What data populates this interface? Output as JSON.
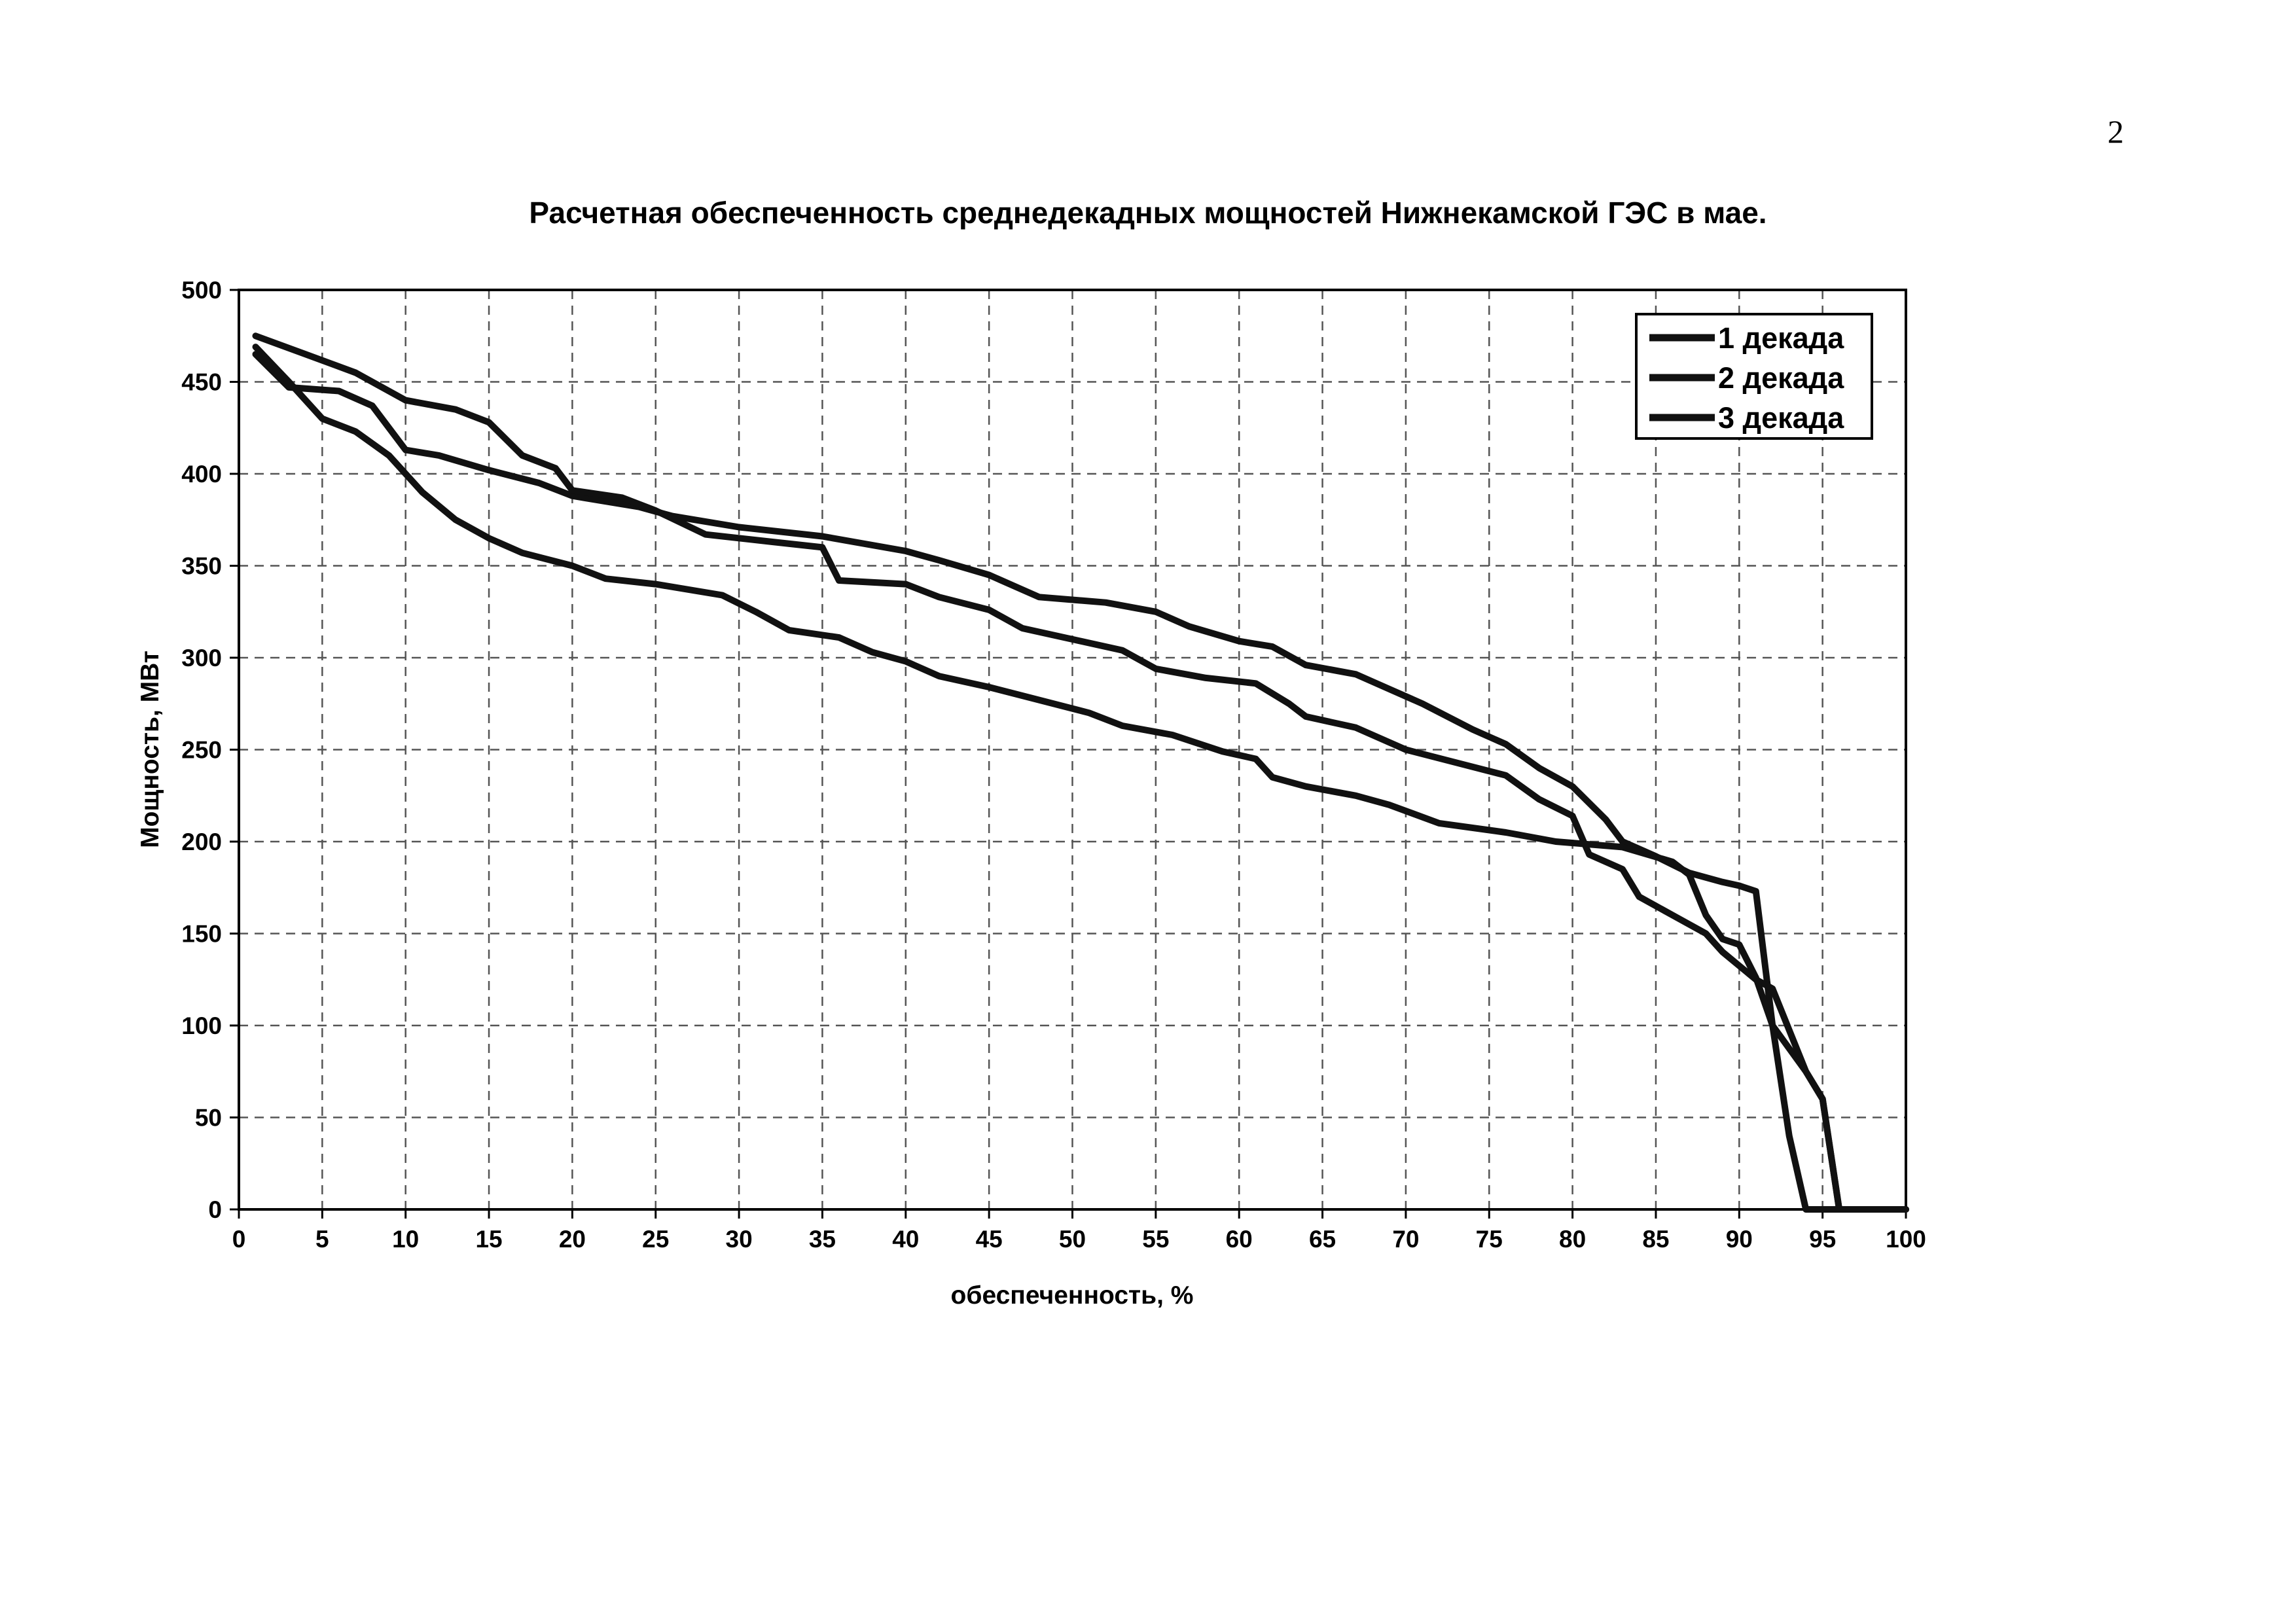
{
  "page": {
    "number": "2"
  },
  "chart_data": {
    "type": "line",
    "title": "Расчетная обеспеченность среднедекадных мощностей Нижнекамской ГЭС в мае.",
    "xlabel": "обеспеченность, %",
    "ylabel": "Мощность, МВт",
    "xlim": [
      0,
      100
    ],
    "ylim": [
      0,
      500
    ],
    "x_ticks": [
      "0",
      "5",
      "10",
      "15",
      "20",
      "25",
      "30",
      "35",
      "40",
      "45",
      "50",
      "55",
      "60",
      "65",
      "70",
      "75",
      "80",
      "85",
      "90",
      "95",
      "100"
    ],
    "y_ticks": [
      "0",
      "50",
      "100",
      "150",
      "200",
      "250",
      "300",
      "350",
      "400",
      "450",
      "500"
    ],
    "grid": true,
    "legend_position": "top-right",
    "colors": {
      "line": "#111111",
      "grid": "#555555"
    },
    "series": [
      {
        "name": "1 декада",
        "points": [
          [
            1,
            465
          ],
          [
            3,
            447
          ],
          [
            6,
            445
          ],
          [
            8,
            437
          ],
          [
            10,
            413
          ],
          [
            12,
            410
          ],
          [
            15,
            402
          ],
          [
            18,
            395
          ],
          [
            20,
            388
          ],
          [
            24,
            382
          ],
          [
            26,
            377
          ],
          [
            30,
            371
          ],
          [
            35,
            366
          ],
          [
            40,
            358
          ],
          [
            42,
            353
          ],
          [
            45,
            345
          ],
          [
            48,
            333
          ],
          [
            52,
            330
          ],
          [
            55,
            325
          ],
          [
            57,
            317
          ],
          [
            60,
            309
          ],
          [
            62,
            306
          ],
          [
            64,
            296
          ],
          [
            67,
            291
          ],
          [
            69,
            283
          ],
          [
            71,
            275
          ],
          [
            74,
            261
          ],
          [
            76,
            253
          ],
          [
            78,
            240
          ],
          [
            80,
            230
          ],
          [
            82,
            212
          ],
          [
            83,
            200
          ],
          [
            85,
            192
          ],
          [
            87,
            183
          ],
          [
            89,
            178
          ],
          [
            90,
            176
          ],
          [
            91,
            173
          ],
          [
            92,
            100
          ],
          [
            94,
            75
          ],
          [
            95,
            60
          ],
          [
            96,
            0
          ],
          [
            100,
            0
          ]
        ]
      },
      {
        "name": "2 декада",
        "points": [
          [
            1,
            475
          ],
          [
            4,
            465
          ],
          [
            7,
            455
          ],
          [
            10,
            440
          ],
          [
            13,
            435
          ],
          [
            15,
            428
          ],
          [
            17,
            410
          ],
          [
            19,
            403
          ],
          [
            20,
            391
          ],
          [
            23,
            387
          ],
          [
            25,
            380
          ],
          [
            28,
            367
          ],
          [
            32,
            363
          ],
          [
            35,
            360
          ],
          [
            36,
            342
          ],
          [
            40,
            340
          ],
          [
            42,
            333
          ],
          [
            45,
            326
          ],
          [
            47,
            316
          ],
          [
            50,
            310
          ],
          [
            53,
            304
          ],
          [
            55,
            294
          ],
          [
            58,
            289
          ],
          [
            61,
            286
          ],
          [
            63,
            275
          ],
          [
            64,
            268
          ],
          [
            67,
            262
          ],
          [
            70,
            250
          ],
          [
            73,
            243
          ],
          [
            76,
            236
          ],
          [
            78,
            223
          ],
          [
            80,
            214
          ],
          [
            81,
            193
          ],
          [
            83,
            185
          ],
          [
            84,
            170
          ],
          [
            86,
            160
          ],
          [
            88,
            150
          ],
          [
            89,
            140
          ],
          [
            91,
            125
          ],
          [
            92,
            120
          ],
          [
            94,
            75
          ],
          [
            95,
            60
          ],
          [
            96,
            0
          ],
          [
            100,
            0
          ]
        ]
      },
      {
        "name": "3 декада",
        "points": [
          [
            1,
            469
          ],
          [
            3,
            450
          ],
          [
            5,
            430
          ],
          [
            7,
            423
          ],
          [
            9,
            410
          ],
          [
            11,
            390
          ],
          [
            13,
            375
          ],
          [
            15,
            365
          ],
          [
            17,
            357
          ],
          [
            20,
            350
          ],
          [
            22,
            343
          ],
          [
            25,
            340
          ],
          [
            29,
            334
          ],
          [
            31,
            325
          ],
          [
            33,
            315
          ],
          [
            36,
            311
          ],
          [
            38,
            303
          ],
          [
            40,
            298
          ],
          [
            42,
            290
          ],
          [
            45,
            284
          ],
          [
            48,
            277
          ],
          [
            51,
            270
          ],
          [
            53,
            263
          ],
          [
            56,
            258
          ],
          [
            59,
            249
          ],
          [
            61,
            245
          ],
          [
            62,
            235
          ],
          [
            64,
            230
          ],
          [
            67,
            225
          ],
          [
            69,
            220
          ],
          [
            72,
            210
          ],
          [
            76,
            205
          ],
          [
            79,
            200
          ],
          [
            83,
            197
          ],
          [
            86,
            189
          ],
          [
            87,
            182
          ],
          [
            88,
            160
          ],
          [
            89,
            147
          ],
          [
            90,
            144
          ],
          [
            91,
            126
          ],
          [
            92,
            100
          ],
          [
            93,
            40
          ],
          [
            94,
            0
          ],
          [
            100,
            0
          ]
        ]
      }
    ]
  }
}
